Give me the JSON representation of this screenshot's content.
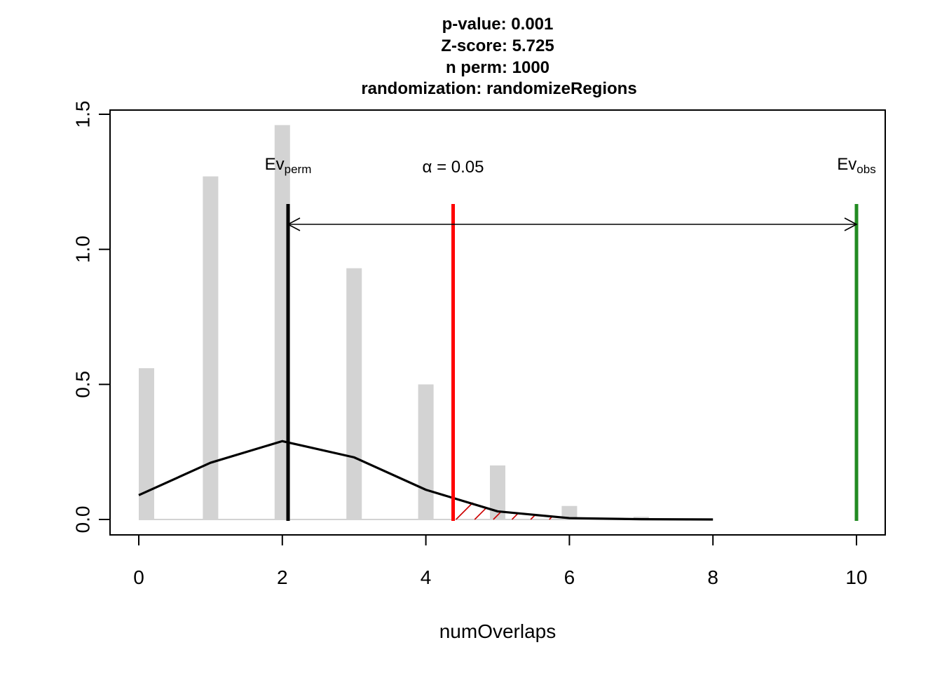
{
  "title_lines": [
    "p-value:  0.001",
    "Z-score:  5.725",
    "n perm:  1000",
    "randomization:  randomizeRegions"
  ],
  "chart_data": {
    "type": "bar",
    "xlabel": "numOverlaps",
    "ylabel": "",
    "xlim": [
      0,
      10
    ],
    "ylim": [
      0,
      1.5
    ],
    "x_ticks": [
      "0",
      "2",
      "4",
      "6",
      "8",
      "10"
    ],
    "y_ticks": [
      "0.0",
      "0.5",
      "1.0",
      "1.5"
    ],
    "histogram": {
      "color": "#d3d3d3",
      "x": [
        0,
        1,
        2,
        3,
        4,
        5,
        6,
        7
      ],
      "density": [
        0.56,
        1.27,
        1.46,
        0.93,
        0.5,
        0.2,
        0.05,
        0.01
      ]
    },
    "density_curve": {
      "color": "#000000",
      "x": [
        0,
        1,
        2,
        3,
        4,
        5,
        6,
        7,
        8
      ],
      "y": [
        0.09,
        0.21,
        0.29,
        0.23,
        0.11,
        0.03,
        0.005,
        0.001,
        0.0
      ]
    },
    "ev_perm": {
      "x": 2.08,
      "label_main": "Ev",
      "label_sub": "perm",
      "color": "#000000"
    },
    "alpha_line": {
      "x": 4.38,
      "label": "α = 0.05",
      "color": "#ff0000"
    },
    "ev_obs": {
      "x": 10,
      "label_main": "Ev",
      "label_sub": "obs",
      "color": "#228b22"
    },
    "rejection_region": {
      "from": 4.38,
      "to": 5.8,
      "color": "#cc0000"
    }
  }
}
